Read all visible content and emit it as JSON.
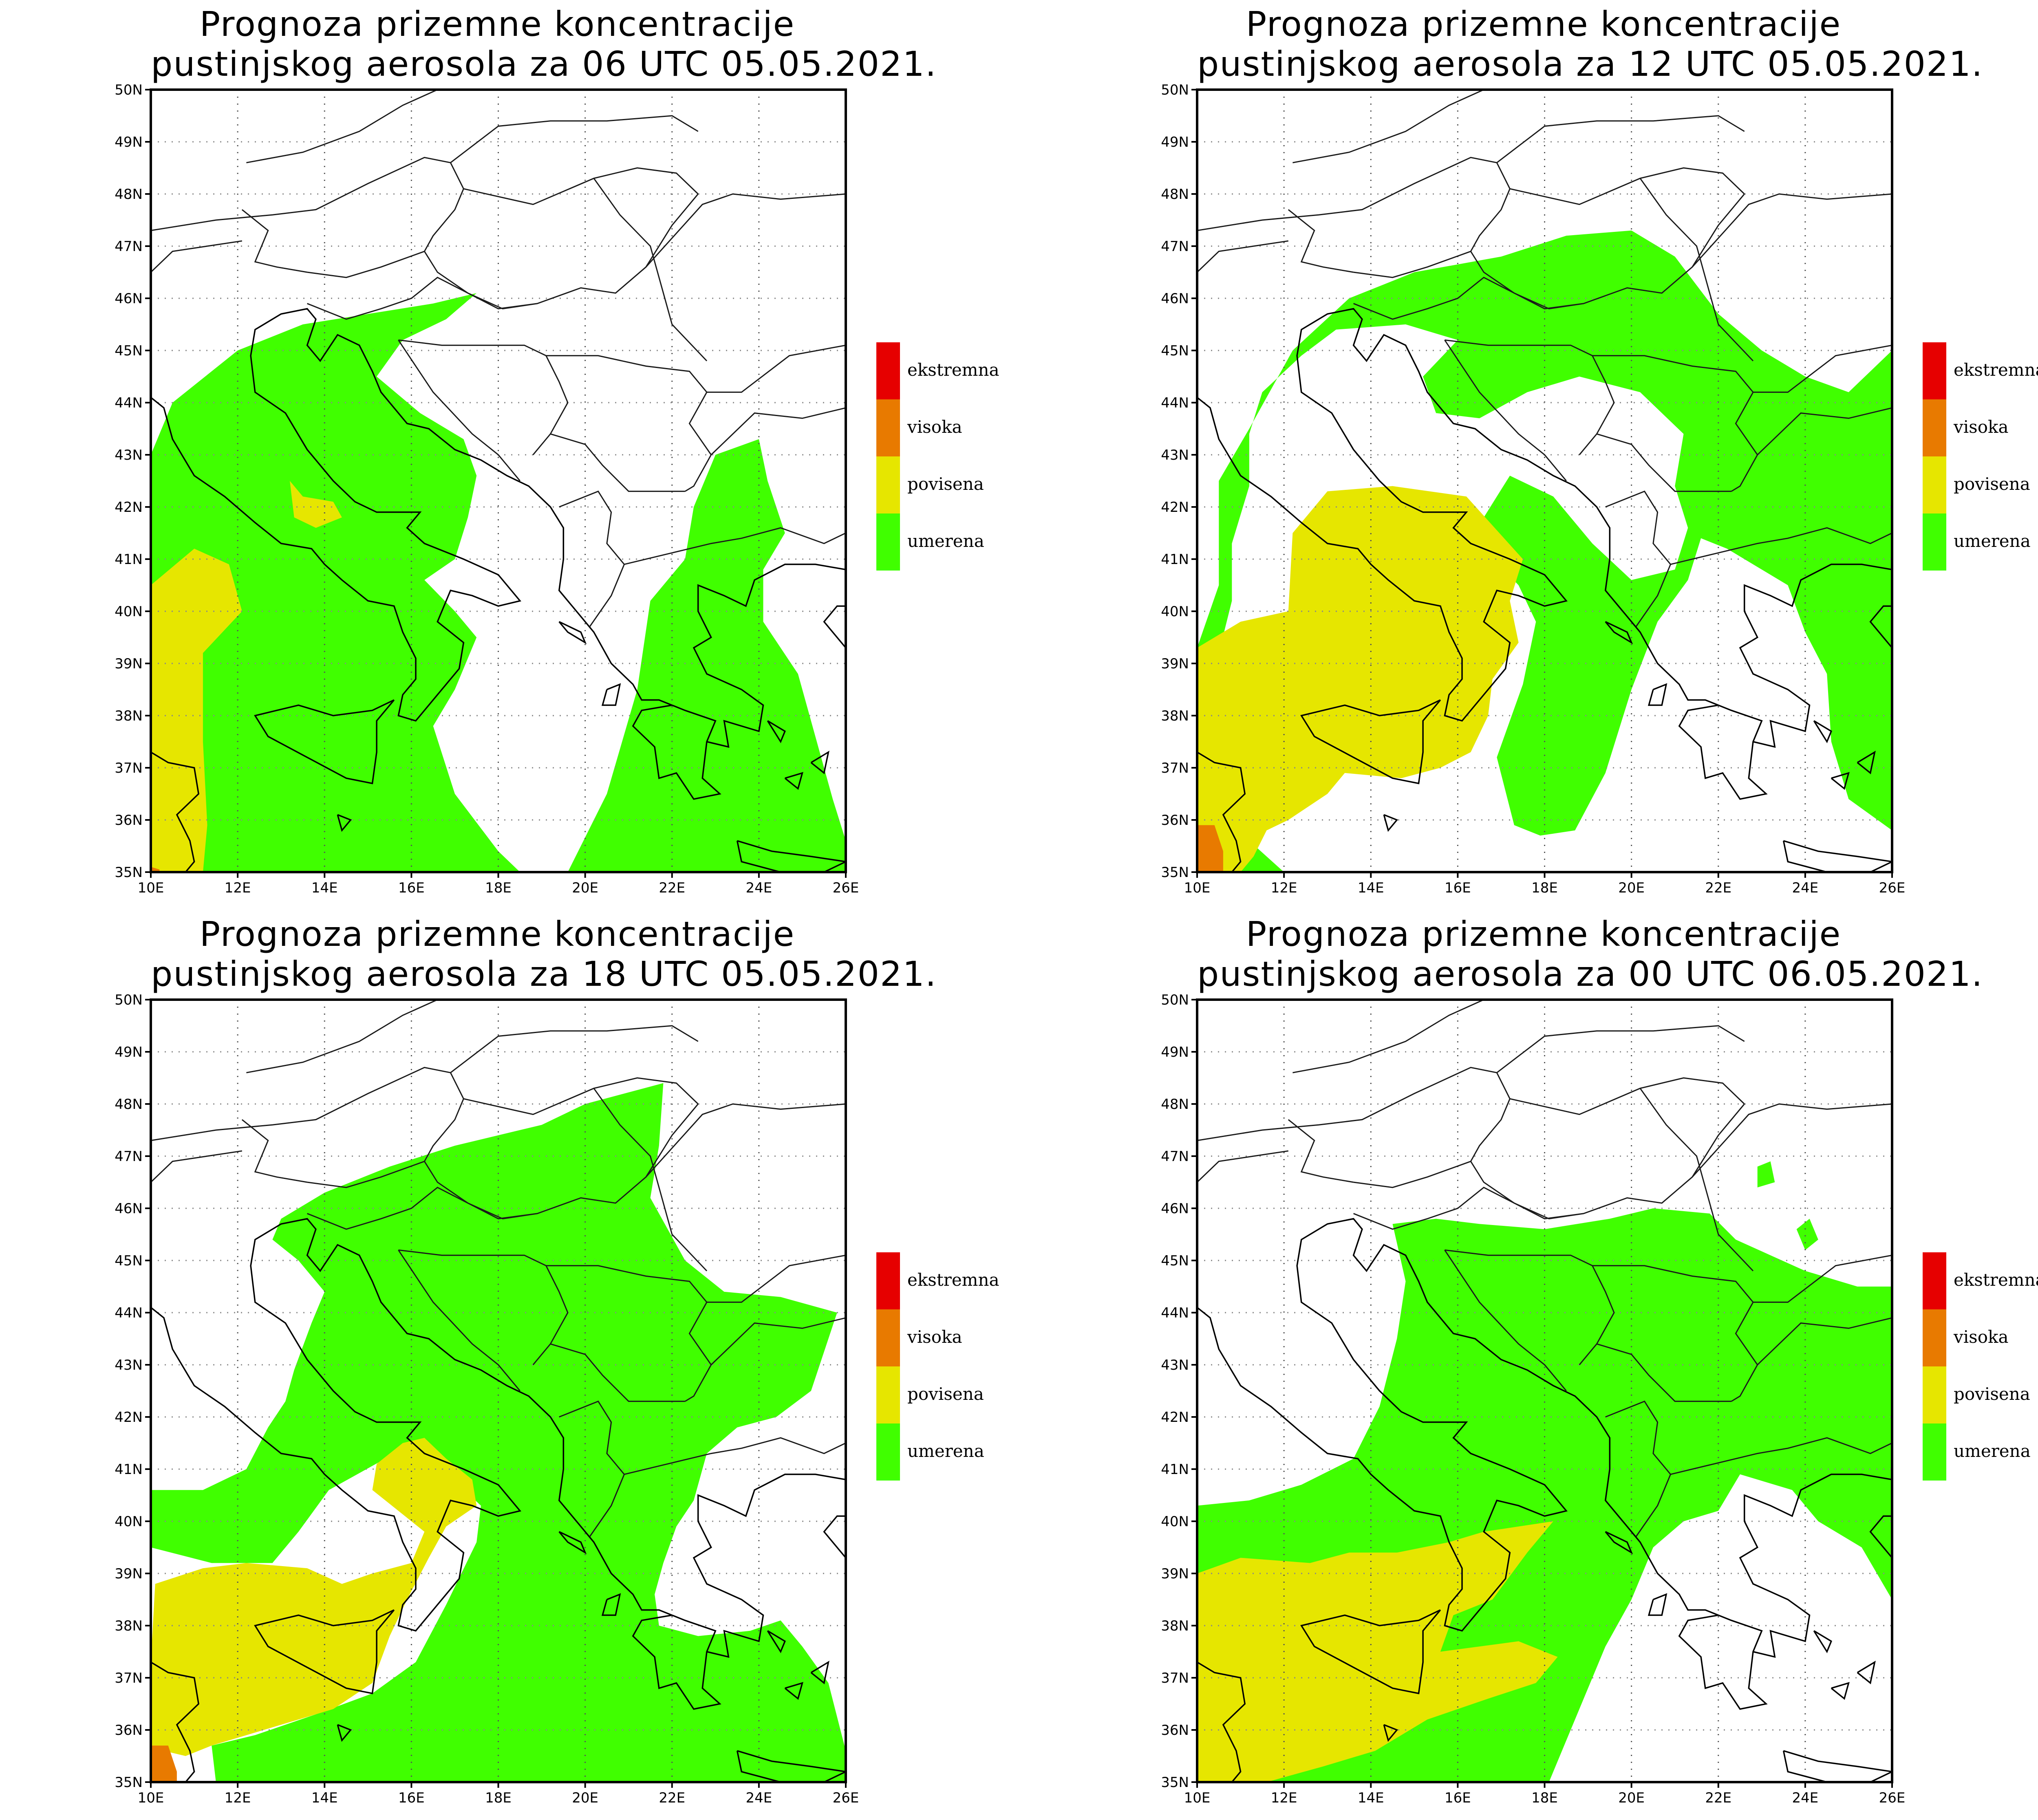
{
  "panels": [
    {
      "id": "p06",
      "title_line1": "Prognoza prizemne koncentracije",
      "title_line2": "pustinjskog aerosola za 06 UTC 05.05.2021."
    },
    {
      "id": "p12",
      "title_line1": "Prognoza prizemne koncentracije",
      "title_line2": "pustinjskog aerosola za 12 UTC 05.05.2021."
    },
    {
      "id": "p18",
      "title_line1": "Prognoza prizemne koncentracije",
      "title_line2": "pustinjskog aerosola za 18 UTC 05.05.2021."
    },
    {
      "id": "p00",
      "title_line1": "Prognoza prizemne koncentracije",
      "title_line2": "pustinjskog aerosola za 00 UTC 06.05.2021."
    }
  ],
  "axes": {
    "lat_labels": [
      "50N",
      "49N",
      "48N",
      "47N",
      "46N",
      "45N",
      "44N",
      "43N",
      "42N",
      "41N",
      "40N",
      "39N",
      "38N",
      "37N",
      "36N",
      "35N"
    ],
    "lon_labels": [
      "10E",
      "12E",
      "14E",
      "16E",
      "18E",
      "20E",
      "22E",
      "24E",
      "26E"
    ]
  },
  "legend": {
    "items": [
      {
        "label": "ekstremna",
        "color": "#e60000"
      },
      {
        "label": "visoka",
        "color": "#e87a00"
      },
      {
        "label": "povisena",
        "color": "#e6e600"
      },
      {
        "label": "umerena",
        "color": "#40ff00"
      }
    ]
  }
}
